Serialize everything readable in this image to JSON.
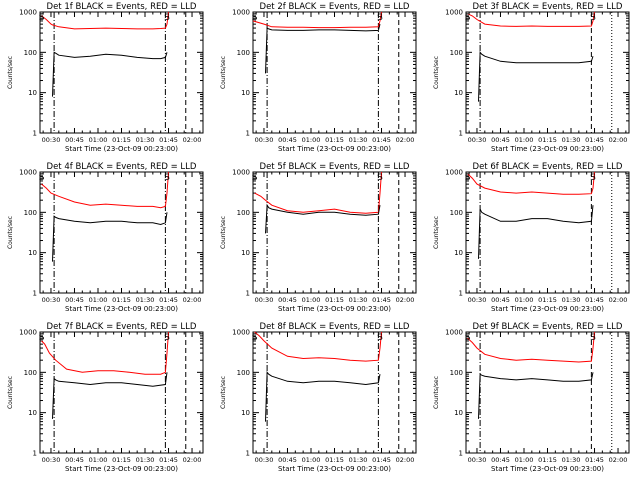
{
  "chart_data": [
    {
      "type": "line",
      "title": "Det 1f BLACK = Events, RED = LLD",
      "xlabel": "Start Time (23-Oct-09 00:23:00)",
      "ylabel": "Counts/sec",
      "yscale": "log",
      "ylim": [
        1,
        1000
      ],
      "xlim": [
        "00:23",
        "02:07"
      ],
      "yticks": [
        "1",
        "10",
        "100",
        "1000"
      ],
      "xticks": [
        "00:30",
        "00:45",
        "01:00",
        "01:15",
        "01:30",
        "01:45",
        "02:00"
      ],
      "markers": [
        {
          "text": "S",
          "time": "00:24"
        },
        {
          "text": "S",
          "time": "01:44"
        }
      ],
      "vlines": [
        {
          "time": "00:32",
          "style": "dash-dot"
        },
        {
          "time": "01:43",
          "style": "dash-dot"
        },
        {
          "time": "01:56",
          "style": "dash"
        }
      ],
      "series": [
        {
          "color": "#ff0000",
          "x": [
            "00:24",
            "00:27",
            "00:30",
            "00:31",
            "00:35",
            "00:45",
            "00:55",
            "01:05",
            "01:15",
            "01:25",
            "01:35",
            "01:40",
            "01:43",
            "01:44",
            "01:45"
          ],
          "y": [
            800,
            650,
            500,
            480,
            430,
            380,
            390,
            400,
            390,
            380,
            380,
            390,
            400,
            500,
            1000
          ]
        },
        {
          "color": "#000000",
          "x": [
            "00:31",
            "00:32",
            "00:33",
            "00:35",
            "00:45",
            "00:55",
            "01:05",
            "01:15",
            "01:25",
            "01:35",
            "01:40",
            "01:43",
            "01:44"
          ],
          "y": [
            8,
            100,
            95,
            85,
            75,
            80,
            90,
            85,
            75,
            70,
            70,
            75,
            100
          ]
        }
      ]
    },
    {
      "type": "line",
      "title": "Det 2f BLACK = Events, RED = LLD",
      "xlabel": "Start Time (23-Oct-09 00:23:00)",
      "ylabel": "Counts/sec",
      "yscale": "log",
      "ylim": [
        1,
        1000
      ],
      "xlim": [
        "00:23",
        "02:07"
      ],
      "yticks": [
        "1",
        "10",
        "100",
        "1000"
      ],
      "xticks": [
        "00:30",
        "00:45",
        "01:00",
        "01:15",
        "01:30",
        "01:45",
        "02:00"
      ],
      "markers": [
        {
          "text": "S",
          "time": "00:24"
        },
        {
          "text": "S",
          "time": "01:44"
        }
      ],
      "vlines": [
        {
          "time": "00:32",
          "style": "dash-dot"
        },
        {
          "time": "01:43",
          "style": "dash-dot"
        },
        {
          "time": "01:56",
          "style": "dash"
        }
      ],
      "series": [
        {
          "color": "#ff0000",
          "x": [
            "00:23",
            "00:30",
            "00:35",
            "00:45",
            "00:55",
            "01:05",
            "01:15",
            "01:25",
            "01:35",
            "01:43",
            "01:44",
            "01:45"
          ],
          "y": [
            600,
            500,
            430,
            420,
            420,
            410,
            410,
            420,
            420,
            430,
            600,
            1000
          ]
        },
        {
          "color": "#000000",
          "x": [
            "00:31",
            "00:32",
            "00:33",
            "00:35",
            "00:45",
            "00:55",
            "01:05",
            "01:15",
            "01:25",
            "01:35",
            "01:43",
            "01:44"
          ],
          "y": [
            30,
            400,
            380,
            360,
            350,
            350,
            360,
            360,
            350,
            340,
            350,
            500
          ]
        }
      ]
    },
    {
      "type": "line",
      "title": "Det 3f BLACK = Events, RED = LLD",
      "xlabel": "Start Time (23-Oct-09 00:23:00)",
      "ylabel": "Counts/sec",
      "yscale": "log",
      "ylim": [
        1,
        1000
      ],
      "xlim": [
        "00:23",
        "02:07"
      ],
      "yticks": [
        "1",
        "10",
        "100",
        "1000"
      ],
      "xticks": [
        "00:30",
        "00:45",
        "01:00",
        "01:15",
        "01:30",
        "01:45",
        "02:00"
      ],
      "markers": [
        {
          "text": "S",
          "time": "00:24"
        },
        {
          "text": "S",
          "time": "01:44"
        }
      ],
      "vlines": [
        {
          "time": "00:32",
          "style": "dash-dot"
        },
        {
          "time": "01:43",
          "style": "dash"
        },
        {
          "time": "01:56",
          "style": "dot"
        }
      ],
      "series": [
        {
          "color": "#ff0000",
          "x": [
            "00:24",
            "00:27",
            "00:30",
            "00:35",
            "00:45",
            "00:55",
            "01:05",
            "01:15",
            "01:25",
            "01:35",
            "01:43",
            "01:44",
            "01:45"
          ],
          "y": [
            900,
            800,
            650,
            500,
            450,
            440,
            450,
            440,
            440,
            440,
            450,
            600,
            1000
          ]
        },
        {
          "color": "#000000",
          "x": [
            "00:31",
            "00:32",
            "00:33",
            "00:35",
            "00:45",
            "00:55",
            "01:05",
            "01:15",
            "01:25",
            "01:35",
            "01:43",
            "01:44"
          ],
          "y": [
            6,
            100,
            90,
            80,
            60,
            55,
            55,
            55,
            55,
            55,
            60,
            80
          ]
        }
      ]
    },
    {
      "type": "line",
      "title": "Det 4f BLACK = Events, RED = LLD",
      "xlabel": "Start Time (23-Oct-09 00:23:00)",
      "ylabel": "Counts/sec",
      "yscale": "log",
      "ylim": [
        1,
        1000
      ],
      "xlim": [
        "00:23",
        "02:07"
      ],
      "yticks": [
        "1",
        "10",
        "100",
        "1000"
      ],
      "xticks": [
        "00:30",
        "00:45",
        "01:00",
        "01:15",
        "01:30",
        "01:45",
        "02:00"
      ],
      "markers": [
        {
          "text": "S",
          "time": "00:24"
        },
        {
          "text": "S",
          "time": "01:44"
        }
      ],
      "vlines": [
        {
          "time": "00:32",
          "style": "dash-dot"
        },
        {
          "time": "01:43",
          "style": "dash-dot"
        },
        {
          "time": "01:56",
          "style": "dash"
        }
      ],
      "series": [
        {
          "color": "#ff0000",
          "x": [
            "00:24",
            "00:27",
            "00:30",
            "00:35",
            "00:45",
            "00:55",
            "01:05",
            "01:15",
            "01:25",
            "01:35",
            "01:40",
            "01:43",
            "01:44",
            "01:45"
          ],
          "y": [
            500,
            400,
            300,
            250,
            180,
            150,
            160,
            150,
            140,
            140,
            130,
            140,
            300,
            1000
          ]
        },
        {
          "color": "#000000",
          "x": [
            "00:31",
            "00:32",
            "00:33",
            "00:35",
            "00:45",
            "00:55",
            "01:05",
            "01:15",
            "01:25",
            "01:35",
            "01:40",
            "01:43",
            "01:44"
          ],
          "y": [
            6,
            80,
            75,
            70,
            60,
            55,
            60,
            60,
            55,
            55,
            50,
            55,
            100
          ]
        }
      ]
    },
    {
      "type": "line",
      "title": "Det 5f BLACK = Events, RED = LLD",
      "xlabel": "Start Time (23-Oct-09 00:23:00)",
      "ylabel": "Counts/sec",
      "yscale": "log",
      "ylim": [
        1,
        1000
      ],
      "xlim": [
        "00:23",
        "02:07"
      ],
      "yticks": [
        "1",
        "10",
        "100",
        "1000"
      ],
      "xticks": [
        "00:30",
        "00:45",
        "01:00",
        "01:15",
        "01:30",
        "01:45",
        "02:00"
      ],
      "markers": [
        {
          "text": "S",
          "time": "00:24"
        },
        {
          "text": "S",
          "time": "01:44"
        }
      ],
      "vlines": [
        {
          "time": "00:32",
          "style": "dash-dot"
        },
        {
          "time": "01:43",
          "style": "dash-dot"
        },
        {
          "time": "01:56",
          "style": "dash"
        }
      ],
      "series": [
        {
          "color": "#ff0000",
          "x": [
            "00:24",
            "00:28",
            "00:31",
            "00:35",
            "00:45",
            "00:55",
            "01:05",
            "01:15",
            "01:25",
            "01:35",
            "01:43",
            "01:44",
            "01:45"
          ],
          "y": [
            300,
            250,
            200,
            150,
            110,
            100,
            110,
            120,
            100,
            95,
            100,
            300,
            1000
          ]
        },
        {
          "color": "#000000",
          "x": [
            "00:31",
            "00:32",
            "00:33",
            "00:35",
            "00:45",
            "00:55",
            "01:05",
            "01:15",
            "01:25",
            "01:35",
            "01:43",
            "01:44"
          ],
          "y": [
            30,
            150,
            130,
            120,
            100,
            90,
            100,
            100,
            90,
            85,
            90,
            150
          ]
        }
      ]
    },
    {
      "type": "line",
      "title": "Det 6f BLACK = Events, RED = LLD",
      "xlabel": "Start Time (23-Oct-09 00:23:00)",
      "ylabel": "Counts/sec",
      "yscale": "log",
      "ylim": [
        1,
        1000
      ],
      "xlim": [
        "00:23",
        "02:07"
      ],
      "yticks": [
        "1",
        "10",
        "100",
        "1000"
      ],
      "xticks": [
        "00:30",
        "00:45",
        "01:00",
        "01:15",
        "01:30",
        "01:45",
        "02:00"
      ],
      "markers": [
        {
          "text": "S",
          "time": "00:24"
        },
        {
          "text": "S",
          "time": "01:44"
        }
      ],
      "vlines": [
        {
          "time": "00:32",
          "style": "dash-dot"
        },
        {
          "time": "01:43",
          "style": "dash"
        },
        {
          "time": "01:56",
          "style": "dot"
        }
      ],
      "series": [
        {
          "color": "#ff0000",
          "x": [
            "00:24",
            "00:27",
            "00:30",
            "00:35",
            "00:45",
            "00:55",
            "01:05",
            "01:15",
            "01:25",
            "01:35",
            "01:43",
            "01:44",
            "01:45"
          ],
          "y": [
            900,
            700,
            500,
            400,
            320,
            300,
            320,
            300,
            280,
            280,
            290,
            400,
            1000
          ]
        },
        {
          "color": "#000000",
          "x": [
            "00:31",
            "00:32",
            "00:33",
            "00:35",
            "00:45",
            "00:55",
            "01:05",
            "01:15",
            "01:25",
            "01:35",
            "01:43",
            "01:44"
          ],
          "y": [
            7,
            120,
            100,
            90,
            60,
            60,
            70,
            70,
            60,
            55,
            60,
            150
          ]
        }
      ]
    },
    {
      "type": "line",
      "title": "Det 7f BLACK = Events, RED = LLD",
      "xlabel": "Start Time (23-Oct-09 00:23:00)",
      "ylabel": "Counts/sec",
      "yscale": "log",
      "ylim": [
        1,
        1000
      ],
      "xlim": [
        "00:23",
        "02:07"
      ],
      "yticks": [
        "1",
        "10",
        "100",
        "1000"
      ],
      "xticks": [
        "00:30",
        "00:45",
        "01:00",
        "01:15",
        "01:30",
        "01:45",
        "02:00"
      ],
      "markers": [
        {
          "text": "S",
          "time": "00:24"
        },
        {
          "text": "S",
          "time": "01:44"
        }
      ],
      "vlines": [
        {
          "time": "00:32",
          "style": "dash-dot"
        },
        {
          "time": "01:43",
          "style": "dash-dot"
        },
        {
          "time": "01:56",
          "style": "dash"
        }
      ],
      "series": [
        {
          "color": "#ff0000",
          "x": [
            "00:24",
            "00:26",
            "00:29",
            "00:33",
            "00:40",
            "00:50",
            "01:00",
            "01:10",
            "01:20",
            "01:30",
            "01:40",
            "01:43",
            "01:44",
            "01:45"
          ],
          "y": [
            600,
            500,
            300,
            200,
            120,
            100,
            110,
            110,
            100,
            90,
            90,
            100,
            300,
            1000
          ]
        },
        {
          "color": "#000000",
          "x": [
            "00:31",
            "00:32",
            "00:33",
            "00:35",
            "00:45",
            "00:55",
            "01:05",
            "01:15",
            "01:25",
            "01:35",
            "01:43",
            "01:44"
          ],
          "y": [
            7,
            70,
            65,
            60,
            55,
            50,
            55,
            55,
            50,
            45,
            50,
            100
          ]
        }
      ]
    },
    {
      "type": "line",
      "title": "Det 8f BLACK = Events, RED = LLD",
      "xlabel": "Start Time (23-Oct-09 00:23:00)",
      "ylabel": "Counts/sec",
      "yscale": "log",
      "ylim": [
        1,
        1000
      ],
      "xlim": [
        "00:23",
        "02:07"
      ],
      "yticks": [
        "1",
        "10",
        "100",
        "1000"
      ],
      "xticks": [
        "00:30",
        "00:45",
        "01:00",
        "01:15",
        "01:30",
        "01:45",
        "02:00"
      ],
      "markers": [
        {
          "text": "S",
          "time": "00:24"
        },
        {
          "text": "S",
          "time": "01:44"
        }
      ],
      "vlines": [
        {
          "time": "00:32",
          "style": "dash-dot"
        },
        {
          "time": "01:43",
          "style": "dash-dot"
        },
        {
          "time": "01:56",
          "style": "dash"
        }
      ],
      "series": [
        {
          "color": "#ff0000",
          "x": [
            "00:24",
            "00:27",
            "00:30",
            "00:35",
            "00:45",
            "00:55",
            "01:05",
            "01:15",
            "01:25",
            "01:35",
            "01:43",
            "01:44",
            "01:45"
          ],
          "y": [
            1000,
            800,
            600,
            400,
            250,
            220,
            230,
            220,
            200,
            190,
            200,
            400,
            1000
          ]
        },
        {
          "color": "#000000",
          "x": [
            "00:31",
            "00:32",
            "00:33",
            "00:35",
            "00:45",
            "00:55",
            "01:05",
            "01:15",
            "01:25",
            "01:35",
            "01:43",
            "01:44"
          ],
          "y": [
            6,
            100,
            90,
            80,
            60,
            55,
            60,
            60,
            55,
            50,
            55,
            90
          ]
        }
      ]
    },
    {
      "type": "line",
      "title": "Det 9f BLACK = Events, RED = LLD",
      "xlabel": "Start Time (23-Oct-09 00:23:00)",
      "ylabel": "Counts/sec",
      "yscale": "log",
      "ylim": [
        1,
        1000
      ],
      "xlim": [
        "00:23",
        "02:07"
      ],
      "yticks": [
        "1",
        "10",
        "100",
        "1000"
      ],
      "xticks": [
        "00:30",
        "00:45",
        "01:00",
        "01:15",
        "01:30",
        "01:45",
        "02:00"
      ],
      "markers": [
        {
          "text": "S",
          "time": "00:24"
        },
        {
          "text": "S",
          "time": "01:44"
        }
      ],
      "vlines": [
        {
          "time": "00:32",
          "style": "dash-dot"
        },
        {
          "time": "01:43",
          "style": "dash"
        },
        {
          "time": "01:56",
          "style": "dot"
        }
      ],
      "series": [
        {
          "color": "#ff0000",
          "x": [
            "00:24",
            "00:27",
            "00:30",
            "00:35",
            "00:45",
            "00:55",
            "01:05",
            "01:15",
            "01:25",
            "01:35",
            "01:43",
            "01:44",
            "01:45"
          ],
          "y": [
            700,
            550,
            400,
            280,
            220,
            200,
            210,
            200,
            190,
            180,
            190,
            400,
            1000
          ]
        },
        {
          "color": "#000000",
          "x": [
            "00:31",
            "00:32",
            "00:33",
            "00:35",
            "00:45",
            "00:55",
            "01:05",
            "01:15",
            "01:25",
            "01:35",
            "01:43",
            "01:44"
          ],
          "y": [
            7,
            90,
            85,
            80,
            70,
            65,
            70,
            65,
            60,
            60,
            65,
            100
          ]
        }
      ]
    }
  ]
}
